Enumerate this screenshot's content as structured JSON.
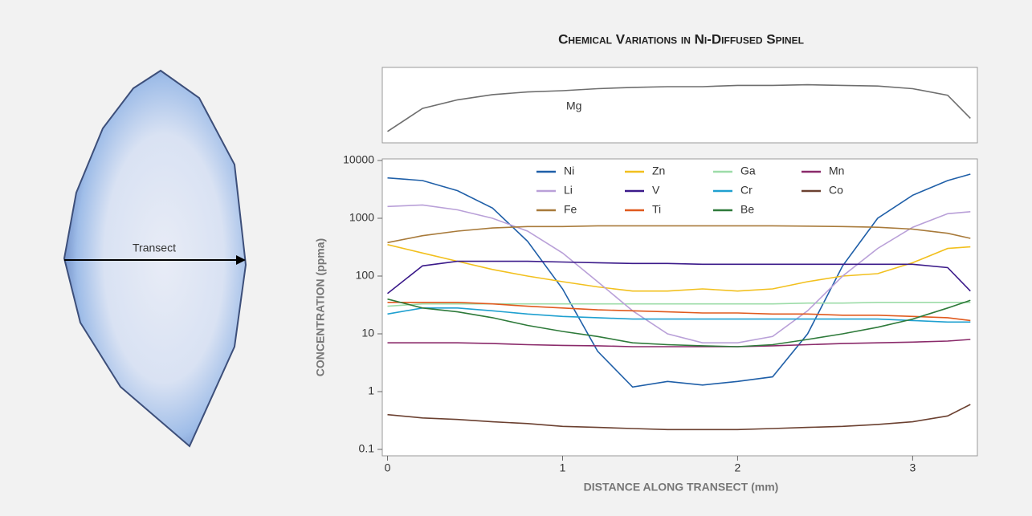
{
  "chart_data": [
    {
      "type": "line",
      "x": [
        0,
        0.2,
        0.4,
        0.6,
        0.8,
        1.0,
        1.2,
        1.4,
        1.6,
        1.8,
        2.0,
        2.2,
        2.4,
        2.6,
        2.8,
        3.0,
        3.2,
        3.33
      ],
      "xlim": [
        -0.03,
        3.37
      ],
      "ylim": [
        0,
        100
      ],
      "series": [
        {
          "name": "Mg",
          "color": "#6e6e6e",
          "values": [
            10,
            45,
            58,
            66,
            70,
            72,
            75,
            77,
            78,
            78,
            80,
            80,
            81,
            80,
            79,
            75,
            65,
            30
          ]
        }
      ]
    },
    {
      "type": "line",
      "title": "Chemical Variations in Ni-Diffused Spinel",
      "xlabel": "DISTANCE ALONG TRANSECT (mm)",
      "ylabel": "CONCENTRATION (ppma)",
      "annotations": [
        "Transect"
      ],
      "yscale": "log",
      "x": [
        0,
        0.2,
        0.4,
        0.6,
        0.8,
        1.0,
        1.2,
        1.4,
        1.6,
        1.8,
        2.0,
        2.2,
        2.4,
        2.6,
        2.8,
        3.0,
        3.2,
        3.33
      ],
      "xlim": [
        -0.03,
        3.37
      ],
      "xticks": [
        0,
        1,
        2,
        3
      ],
      "ylim": [
        0.1,
        10000
      ],
      "yticks": [
        0.1,
        1,
        10,
        100,
        1000,
        10000
      ],
      "series": [
        {
          "name": "Ni",
          "color": "#1f5fa8",
          "values": [
            5000,
            4500,
            3000,
            1500,
            400,
            60,
            5,
            1.2,
            1.5,
            1.3,
            1.5,
            1.8,
            10,
            150,
            1000,
            2500,
            4500,
            5800
          ]
        },
        {
          "name": "Zn",
          "color": "#f2c01e",
          "values": [
            350,
            250,
            180,
            130,
            100,
            80,
            65,
            55,
            55,
            60,
            55,
            60,
            80,
            100,
            110,
            170,
            300,
            320
          ]
        },
        {
          "name": "Ga",
          "color": "#9ddca8",
          "values": [
            30,
            33,
            33,
            33,
            33,
            33,
            33,
            33,
            33,
            33,
            33,
            33,
            34,
            34,
            35,
            35,
            35,
            35
          ]
        },
        {
          "name": "Mn",
          "color": "#8a2a6a",
          "values": [
            7,
            7,
            7,
            6.8,
            6.5,
            6.3,
            6.2,
            6,
            6,
            6,
            6,
            6.2,
            6.5,
            6.8,
            7,
            7.2,
            7.5,
            8
          ]
        },
        {
          "name": "Li",
          "color": "#b9a0d8",
          "values": [
            1600,
            1700,
            1400,
            1000,
            600,
            250,
            80,
            25,
            10,
            7,
            7,
            9,
            25,
            100,
            300,
            700,
            1200,
            1300
          ]
        },
        {
          "name": "V",
          "color": "#3b1a8a",
          "values": [
            50,
            150,
            180,
            180,
            180,
            175,
            170,
            165,
            165,
            160,
            160,
            160,
            160,
            160,
            160,
            160,
            140,
            55
          ]
        },
        {
          "name": "Cr",
          "color": "#1fa0d0",
          "values": [
            22,
            28,
            28,
            25,
            22,
            20,
            19,
            18,
            18,
            18,
            18,
            18,
            18,
            18,
            18,
            17,
            16,
            16
          ]
        },
        {
          "name": "Co",
          "color": "#6b4030",
          "values": [
            0.4,
            0.35,
            0.33,
            0.3,
            0.28,
            0.25,
            0.24,
            0.23,
            0.22,
            0.22,
            0.22,
            0.23,
            0.24,
            0.25,
            0.27,
            0.3,
            0.38,
            0.6
          ]
        },
        {
          "name": "Fe",
          "color": "#a87a3a",
          "values": [
            380,
            500,
            600,
            680,
            720,
            720,
            740,
            740,
            740,
            740,
            740,
            740,
            730,
            720,
            700,
            650,
            550,
            450
          ]
        },
        {
          "name": "Ti",
          "color": "#e05a1e",
          "values": [
            35,
            35,
            35,
            33,
            30,
            28,
            26,
            25,
            24,
            23,
            23,
            22,
            22,
            21,
            21,
            20,
            19,
            17
          ]
        },
        {
          "name": "Be",
          "color": "#2e7a3a",
          "values": [
            40,
            28,
            24,
            19,
            14,
            11,
            9,
            7,
            6.5,
            6.2,
            6,
            6.5,
            8,
            10,
            13,
            18,
            28,
            38
          ]
        }
      ]
    }
  ]
}
